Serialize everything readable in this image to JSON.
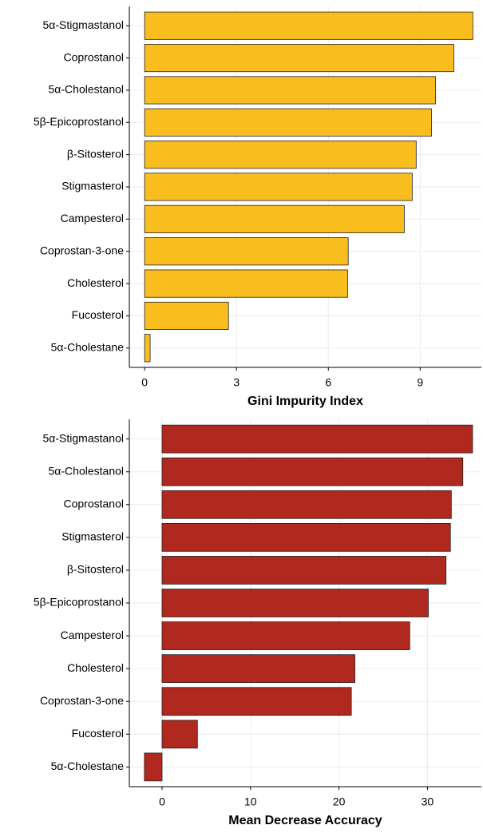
{
  "chart_data": [
    {
      "type": "bar",
      "orientation": "horizontal",
      "x_label": "Gini Impurity Index",
      "categories": [
        "5α-Stigmastanol",
        "Coprostanol",
        "5α-Cholestanol",
        "5β-Epicoprostanol",
        "β-Sitosterol",
        "Stigmasterol",
        "Campesterol",
        "Coprostan-3-one",
        "Cholesterol",
        "Fucosterol",
        "5α-Cholestane"
      ],
      "values": [
        10.72,
        10.1,
        9.5,
        9.37,
        8.87,
        8.74,
        8.48,
        6.65,
        6.63,
        2.74,
        0.18
      ],
      "color": "#f9be1d",
      "xlim": [
        -0.5,
        11.0
      ],
      "xticks": [
        0,
        3,
        6,
        9
      ],
      "grid": true
    },
    {
      "type": "bar",
      "orientation": "horizontal",
      "x_label": "Mean Decrease Accuracy",
      "categories": [
        "5α-Stigmastanol",
        "5α-Cholestanol",
        "Coprostanol",
        "Stigmasterol",
        "β-Sitosterol",
        "5β-Epicoprostanol",
        "Campesterol",
        "Cholesterol",
        "Coprostan-3-one",
        "Fucosterol",
        "5α-Cholestane"
      ],
      "values": [
        35.1,
        34.0,
        32.7,
        32.6,
        32.1,
        30.1,
        28.0,
        21.8,
        21.4,
        4.0,
        -2.0
      ],
      "color": "#b0281e",
      "xlim": [
        -3.7,
        36.1
      ],
      "xticks": [
        0,
        10,
        20,
        30
      ],
      "grid": true
    }
  ]
}
